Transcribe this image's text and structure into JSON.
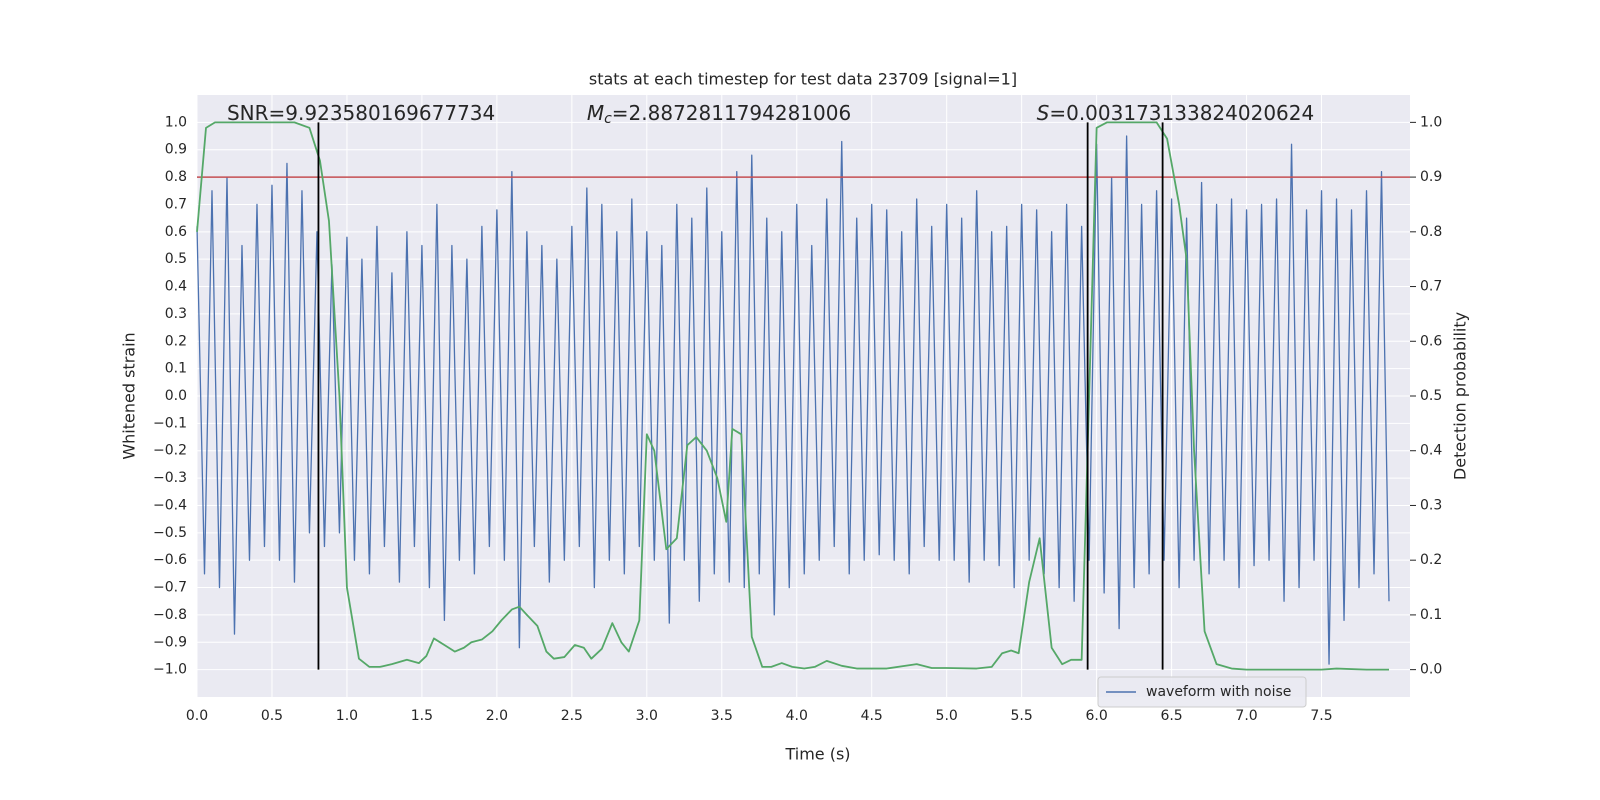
{
  "chart_data": {
    "type": "line",
    "title": "stats at each timestep for test data 23709 [signal=1]",
    "xlabel": "Time (s)",
    "ylabel": "Whitened strain",
    "y2label": "Detection probability",
    "xlim": [
      0,
      8.09
    ],
    "ylim": [
      -1.1,
      1.1
    ],
    "y2lim": [
      -0.05,
      1.05
    ],
    "xticks": [
      {
        "value": 0,
        "label": "0.0"
      },
      0.5,
      {
        "value": 1,
        "label": "1.0"
      },
      1.5,
      {
        "value": 2,
        "label": "2.0"
      },
      2.5,
      {
        "value": 3,
        "label": "3.0"
      },
      3.5,
      {
        "value": 4,
        "label": "4.0"
      },
      4.5,
      {
        "value": 5,
        "label": "5.0"
      },
      5.5,
      {
        "value": 6,
        "label": "6.0"
      },
      6.5,
      {
        "value": 7,
        "label": "7.0"
      },
      7.5
    ],
    "yticks": [
      {
        "value": 1,
        "label": "1.0"
      },
      0.9,
      0.8,
      0.7,
      0.6,
      0.5,
      0.4,
      0.3,
      0.2,
      0.1,
      {
        "value": 0,
        "label": "0.0"
      },
      {
        "value": -0.1,
        "label": "−0.1"
      },
      {
        "value": -0.2,
        "label": "−0.2"
      },
      {
        "value": -0.3,
        "label": "−0.3"
      },
      {
        "value": -0.4,
        "label": "−0.4"
      },
      {
        "value": -0.5,
        "label": "−0.5"
      },
      {
        "value": -0.6,
        "label": "−0.6"
      },
      {
        "value": -0.7,
        "label": "−0.7"
      },
      {
        "value": -0.8,
        "label": "−0.8"
      },
      {
        "value": -0.9,
        "label": "−0.9"
      },
      {
        "value": -1,
        "label": "−1.0"
      }
    ],
    "y2ticks": [
      {
        "value": 1,
        "label": "1.0"
      },
      0.9,
      0.8,
      0.7,
      0.6,
      0.5,
      0.4,
      0.3,
      0.2,
      0.1,
      {
        "value": 0,
        "label": "0.0"
      }
    ],
    "grid": true,
    "legend_loc": "lower right",
    "annotations": [
      {
        "text": "SNR=9.923580169677734",
        "x": 0.2
      },
      {
        "symbol": "M",
        "subscript": "c",
        "text": "=2.8872811794281006",
        "x": 2.6
      },
      {
        "symbol": "S",
        "text": "=0.003173133824020624",
        "x": 5.6
      }
    ],
    "hline": {
      "y": 0.8,
      "color": "#c44e52"
    },
    "vlines": {
      "x": [
        0.81,
        5.94,
        6.44
      ],
      "ymin": -1,
      "ymax": 1,
      "color": "#000000"
    },
    "series": [
      {
        "name": "waveform with noise",
        "color": "#4c72b0",
        "x": [
          0.0,
          0.05,
          0.1,
          0.15,
          0.2,
          0.25,
          0.3,
          0.35,
          0.4,
          0.45,
          0.5,
          0.55,
          0.6,
          0.65,
          0.7,
          0.75,
          0.8,
          0.85,
          0.9,
          0.95,
          1.0,
          1.05,
          1.1,
          1.15,
          1.2,
          1.25,
          1.3,
          1.35,
          1.4,
          1.45,
          1.5,
          1.55,
          1.6,
          1.65,
          1.7,
          1.75,
          1.8,
          1.85,
          1.9,
          1.95,
          2.0,
          2.05,
          2.1,
          2.15,
          2.2,
          2.25,
          2.3,
          2.35,
          2.4,
          2.45,
          2.5,
          2.55,
          2.6,
          2.65,
          2.7,
          2.75,
          2.8,
          2.85,
          2.9,
          2.95,
          3.0,
          3.05,
          3.1,
          3.15,
          3.2,
          3.25,
          3.3,
          3.35,
          3.4,
          3.45,
          3.5,
          3.55,
          3.6,
          3.65,
          3.7,
          3.75,
          3.8,
          3.85,
          3.9,
          3.95,
          4.0,
          4.05,
          4.1,
          4.15,
          4.2,
          4.25,
          4.3,
          4.35,
          4.4,
          4.45,
          4.5,
          4.55,
          4.6,
          4.65,
          4.7,
          4.75,
          4.8,
          4.85,
          4.9,
          4.95,
          5.0,
          5.05,
          5.1,
          5.15,
          5.2,
          5.25,
          5.3,
          5.35,
          5.4,
          5.45,
          5.5,
          5.55,
          5.6,
          5.65,
          5.7,
          5.75,
          5.8,
          5.85,
          5.9,
          5.95,
          6.0,
          6.05,
          6.1,
          6.15,
          6.2,
          6.25,
          6.3,
          6.35,
          6.4,
          6.45,
          6.5,
          6.55,
          6.6,
          6.65,
          6.7,
          6.75,
          6.8,
          6.85,
          6.9,
          6.95,
          7.0,
          7.05,
          7.1,
          7.15,
          7.2,
          7.25,
          7.3,
          7.35,
          7.4,
          7.45,
          7.5,
          7.55,
          7.6,
          7.65,
          7.7,
          7.75,
          7.8,
          7.85,
          7.9,
          7.95
        ],
        "values": [
          0.62,
          -0.65,
          0.75,
          -0.7,
          0.8,
          -0.87,
          0.55,
          -0.6,
          0.7,
          -0.55,
          0.77,
          -0.6,
          0.85,
          -0.68,
          0.75,
          -0.5,
          0.6,
          -0.55,
          0.48,
          -0.5,
          0.58,
          -0.6,
          0.5,
          -0.65,
          0.62,
          -0.55,
          0.45,
          -0.68,
          0.6,
          -0.55,
          0.55,
          -0.7,
          0.7,
          -0.82,
          0.55,
          -0.6,
          0.5,
          -0.65,
          0.62,
          -0.55,
          0.68,
          -0.6,
          0.82,
          -0.92,
          0.6,
          -0.55,
          0.55,
          -0.68,
          0.5,
          -0.6,
          0.62,
          -0.55,
          0.76,
          -0.7,
          0.7,
          -0.6,
          0.6,
          -0.65,
          0.72,
          -0.55,
          0.6,
          -0.6,
          0.55,
          -0.83,
          0.7,
          -0.6,
          0.65,
          -0.75,
          0.76,
          -0.65,
          0.6,
          -0.68,
          0.82,
          -0.7,
          0.88,
          -0.65,
          0.65,
          -0.8,
          0.6,
          -0.7,
          0.7,
          -0.65,
          0.55,
          -0.6,
          0.72,
          -0.55,
          0.93,
          -0.65,
          0.65,
          -0.6,
          0.7,
          -0.58,
          0.68,
          -0.6,
          0.6,
          -0.65,
          0.72,
          -0.55,
          0.62,
          -0.6,
          0.7,
          -0.6,
          0.65,
          -0.68,
          0.75,
          -0.6,
          0.6,
          -0.62,
          0.62,
          -0.7,
          0.7,
          -0.6,
          0.68,
          -0.65,
          0.6,
          -0.7,
          0.7,
          -0.75,
          0.62,
          -0.6,
          0.92,
          -0.72,
          0.8,
          -0.85,
          0.95,
          -0.7,
          0.7,
          -0.65,
          0.75,
          -0.6,
          0.72,
          -0.7,
          0.65,
          -0.6,
          0.78,
          -0.65,
          0.7,
          -0.6,
          0.72,
          -0.7,
          0.68,
          -0.62,
          0.7,
          -0.6,
          0.72,
          -0.75,
          0.92,
          -0.7,
          0.68,
          -0.6,
          0.75,
          -0.98,
          0.72,
          -0.82,
          0.68,
          -0.7,
          0.75,
          -0.65,
          0.82,
          -0.75
        ]
      },
      {
        "color": "#55a868",
        "axis": "y2",
        "x": [
          0.0,
          0.06,
          0.12,
          0.65,
          0.75,
          0.82,
          0.88,
          0.95,
          1.0,
          1.08,
          1.15,
          1.22,
          1.3,
          1.4,
          1.48,
          1.53,
          1.58,
          1.65,
          1.72,
          1.78,
          1.83,
          1.9,
          1.97,
          2.03,
          2.1,
          2.15,
          2.2,
          2.27,
          2.33,
          2.38,
          2.45,
          2.52,
          2.58,
          2.63,
          2.7,
          2.77,
          2.83,
          2.88,
          2.95,
          3.0,
          3.05,
          3.13,
          3.2,
          3.27,
          3.33,
          3.4,
          3.47,
          3.53,
          3.57,
          3.63,
          3.7,
          3.77,
          3.83,
          3.9,
          3.97,
          4.05,
          4.12,
          4.2,
          4.3,
          4.4,
          4.6,
          4.8,
          4.9,
          5.0,
          5.2,
          5.3,
          5.37,
          5.43,
          5.48,
          5.55,
          5.62,
          5.7,
          5.77,
          5.83,
          5.9,
          5.95,
          6.0,
          6.07,
          6.4,
          6.47,
          6.55,
          6.6,
          6.65,
          6.72,
          6.8,
          6.9,
          7.0,
          7.5,
          7.6,
          7.8,
          7.95
        ],
        "values": [
          0.8,
          0.99,
          1.0,
          1.0,
          0.99,
          0.93,
          0.82,
          0.5,
          0.15,
          0.02,
          0.005,
          0.005,
          0.01,
          0.018,
          0.012,
          0.025,
          0.057,
          0.045,
          0.033,
          0.04,
          0.05,
          0.055,
          0.07,
          0.09,
          0.11,
          0.115,
          0.1,
          0.08,
          0.033,
          0.02,
          0.023,
          0.045,
          0.04,
          0.02,
          0.038,
          0.085,
          0.05,
          0.033,
          0.09,
          0.43,
          0.4,
          0.22,
          0.24,
          0.41,
          0.425,
          0.4,
          0.35,
          0.27,
          0.44,
          0.43,
          0.06,
          0.005,
          0.005,
          0.012,
          0.005,
          0.002,
          0.005,
          0.016,
          0.007,
          0.002,
          0.002,
          0.01,
          0.003,
          0.003,
          0.002,
          0.005,
          0.03,
          0.035,
          0.03,
          0.16,
          0.24,
          0.04,
          0.01,
          0.018,
          0.018,
          0.5,
          0.99,
          1.0,
          1.0,
          0.97,
          0.85,
          0.75,
          0.4,
          0.07,
          0.01,
          0.002,
          0.0,
          0.0,
          0.002,
          0.0,
          0.0
        ]
      }
    ]
  }
}
